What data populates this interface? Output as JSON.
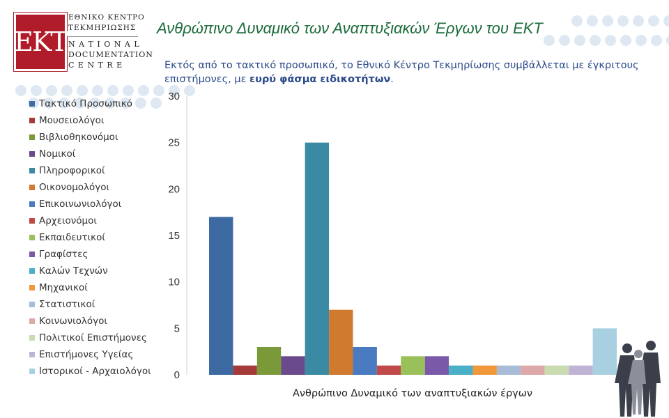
{
  "logo": {
    "mark": "ΕΚΤ",
    "lines_gr": [
      "ΕΘΝΙΚΟ ΚΕΝΤΡΟ",
      "ΤΕΚΜΗΡΙΩΣΗΣ"
    ],
    "lines_en": [
      "N A T I O N A L",
      "DOCUMENTATION",
      "C E N T R E"
    ]
  },
  "page": {
    "title": "Ανθρώπινο Δυναμικό των Αναπτυξιακών Έργων του ΕΚΤ",
    "subtitle_text": "Εκτός από το τακτικό προσωπικό, το Εθνικό Κέντρο Τεκμηρίωσης συμβάλλεται με έγκριτους επιστήμονες, με ",
    "subtitle_bold": "ευρύ φάσμα ειδικοτήτων",
    "subtitle_end": "."
  },
  "chart_data": {
    "type": "bar",
    "xlabel": "Ανθρώπινο Δυναμικό των αναπτυξιακών έργων",
    "ylabel": "",
    "ylim": [
      0,
      30
    ],
    "yticks": [
      0,
      5,
      10,
      15,
      20,
      25,
      30
    ],
    "grid": false,
    "legend_position": "left",
    "series": [
      {
        "name": "Τακτικό Προσωπικό",
        "value": 17,
        "color": "#3d6aa3"
      },
      {
        "name": "Μουσειολόγοι",
        "value": 1,
        "color": "#a63a3a"
      },
      {
        "name": "Βιβλιοθηκονόμοι",
        "value": 3,
        "color": "#7a9a3a"
      },
      {
        "name": "Νομικοί",
        "value": 2,
        "color": "#6a4a8a"
      },
      {
        "name": "Πληροφορικοί",
        "value": 25,
        "color": "#3a8aa3"
      },
      {
        "name": "Οικονομολόγοι",
        "value": 7,
        "color": "#d07a30"
      },
      {
        "name": "Επικοινωνιολόγοι",
        "value": 3,
        "color": "#4a7ac0"
      },
      {
        "name": "Αρχειονόμοι",
        "value": 1,
        "color": "#c04a4a"
      },
      {
        "name": "Εκπαιδευτικοί",
        "value": 2,
        "color": "#9ac05a"
      },
      {
        "name": "Γραφίστες",
        "value": 2,
        "color": "#7a5aa8"
      },
      {
        "name": "Καλών Τεχνών",
        "value": 1,
        "color": "#4ab0c8"
      },
      {
        "name": "Μηχανικοί",
        "value": 1,
        "color": "#f0983a"
      },
      {
        "name": "Στατιστικοί",
        "value": 1,
        "color": "#a8bcd8"
      },
      {
        "name": "Κοινωνιολόγοι",
        "value": 1,
        "color": "#dca8a8"
      },
      {
        "name": "Πολιτικοί Επιστήμονες",
        "value": 1,
        "color": "#c8dcb0"
      },
      {
        "name": "Επιστήμονες Υγείας",
        "value": 1,
        "color": "#c0b4d6"
      },
      {
        "name": "Ιστορικοί - Αρχαιολόγοι",
        "value": 5,
        "color": "#a8d0e0"
      }
    ]
  }
}
